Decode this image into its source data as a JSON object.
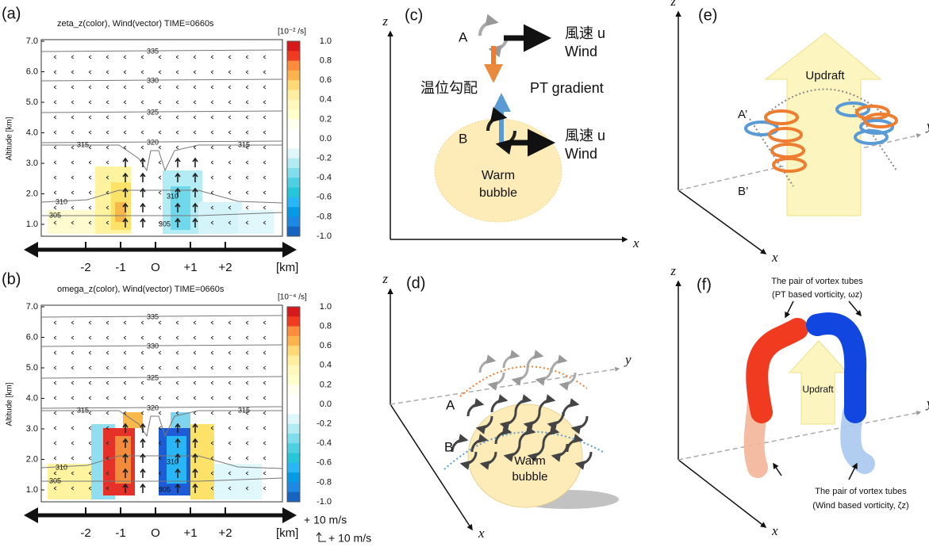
{
  "panels": {
    "a": {
      "label": "(a)",
      "title": "zeta_z(color), Wind(vector)  TIME=0660s",
      "unit": "[10⁻² /s]",
      "y_title": "Altitude [km]",
      "y_ticks": [
        "7.0",
        "6.0",
        "5.0",
        "4.0",
        "3.0",
        "2.0",
        "1.0"
      ],
      "colorbar_ticks": [
        "1.0",
        "0.8",
        "0.6",
        "0.4",
        "0.2",
        "0.0",
        "-0.2",
        "-0.4",
        "-0.6",
        "-0.8",
        "-1.0"
      ],
      "contours": [
        "335",
        "330",
        "325",
        "320",
        "315",
        "315",
        "310",
        "310",
        "305",
        "305"
      ],
      "x_ticks": [
        "-2",
        "-1",
        "O",
        "+1",
        "+2"
      ],
      "x_unit": "[km]"
    },
    "b": {
      "label": "(b)",
      "title": "omega_z(color), Wind(vector)  TIME=0660s",
      "unit": "[10⁻⁴ /s]",
      "y_title": "Altitude [km]",
      "y_ticks": [
        "7.0",
        "6.0",
        "5.0",
        "4.0",
        "3.0",
        "2.0",
        "1.0"
      ],
      "colorbar_ticks": [
        "1.0",
        "0.8",
        "0.6",
        "0.4",
        "0.2",
        "0.0",
        "-0.2",
        "-0.4",
        "-0.6",
        "-0.8",
        "-1.0"
      ],
      "contours": [
        "335",
        "330",
        "325",
        "320",
        "315",
        "315",
        "310",
        "310",
        "305",
        "305"
      ],
      "x_ticks": [
        "-2",
        "-1",
        "O",
        "+1",
        "+2"
      ],
      "x_unit": "[km]",
      "vector_key": [
        "+ 10 m/s",
        "+ 10 m/s"
      ]
    },
    "c": {
      "label": "(c)",
      "z": "z",
      "x": "x",
      "A": "A",
      "B": "B",
      "wind_u_top": "風速 u",
      "wind_top": "Wind",
      "pt_jp": "温位勾配",
      "pt_en": "PT gradient",
      "wind_u_bottom": "風速 u",
      "wind_bottom": "Wind",
      "bubble": [
        "Warm",
        "bubble"
      ]
    },
    "d": {
      "label": "(d)",
      "z": "z",
      "x": "x",
      "y": "y",
      "A": "A",
      "B": "B",
      "bubble": [
        "Warm",
        "bubble"
      ]
    },
    "e": {
      "label": "(e)",
      "z": "z",
      "x": "x",
      "y": "y",
      "updraft": "Updraft",
      "A": "A’",
      "B": "B’"
    },
    "f": {
      "label": "(f)",
      "z": "z",
      "x": "x",
      "y": "y",
      "top_caption": [
        "The pair of vortex tubes",
        "(PT based vorticity, ωz)"
      ],
      "updraft": "Updraft",
      "bottom_caption": [
        "The pair of vortex tubes",
        "(Wind based vorticity, ζz)"
      ]
    }
  }
}
